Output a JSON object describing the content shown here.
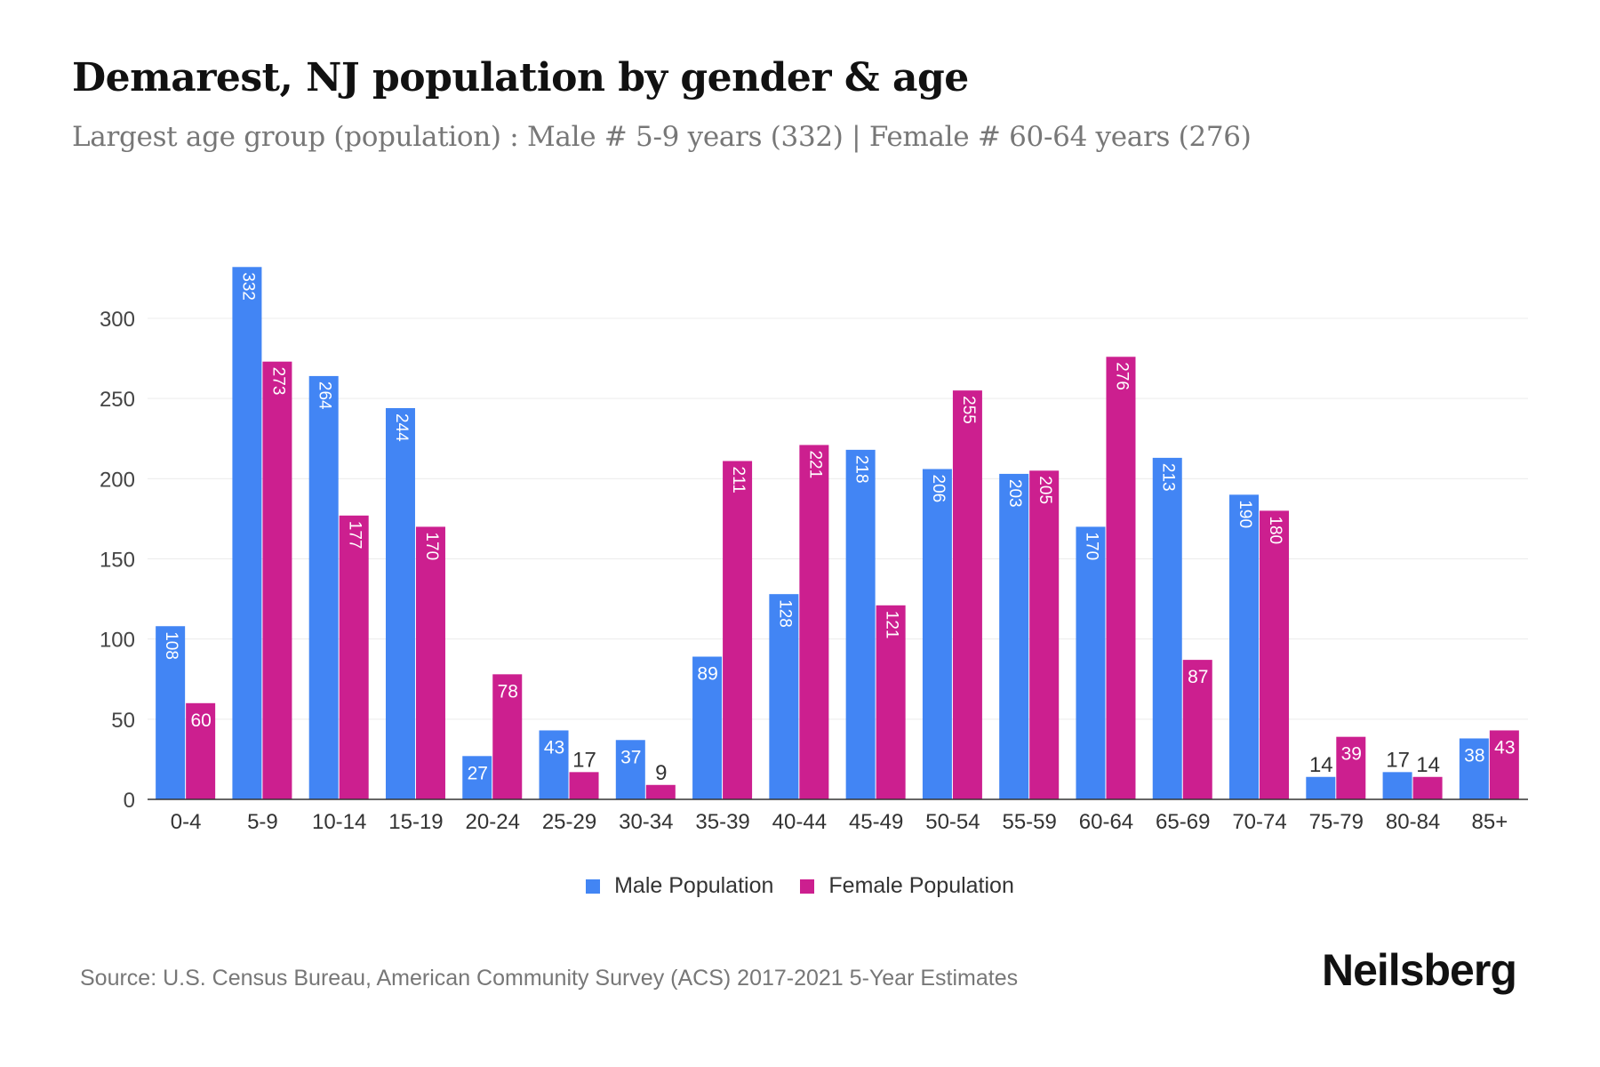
{
  "title": "Demarest, NJ population by gender & age",
  "subtitle": "Largest age group (population) : Male # 5-9 years (332) | Female # 60-64 years (276)",
  "source": "Source: U.S. Census Bureau, American Community Survey (ACS) 2017-2021 5-Year Estimates",
  "logo": "Neilsberg",
  "chart_data": {
    "type": "bar",
    "categories": [
      "0-4",
      "5-9",
      "10-14",
      "15-19",
      "20-24",
      "25-29",
      "30-34",
      "35-39",
      "40-44",
      "45-49",
      "50-54",
      "55-59",
      "60-64",
      "65-69",
      "70-74",
      "75-79",
      "80-84",
      "85+"
    ],
    "series": [
      {
        "name": "Male Population",
        "color": "#4285f4",
        "values": [
          108,
          332,
          264,
          244,
          27,
          43,
          37,
          89,
          128,
          218,
          206,
          203,
          170,
          213,
          190,
          14,
          17,
          38
        ]
      },
      {
        "name": "Female Population",
        "color": "#cc1f8f",
        "values": [
          60,
          273,
          177,
          170,
          78,
          17,
          9,
          211,
          221,
          121,
          255,
          205,
          276,
          87,
          180,
          39,
          14,
          43
        ]
      }
    ],
    "yticks": [
      0,
      50,
      100,
      150,
      200,
      250,
      300
    ],
    "ylim": [
      0,
      332
    ],
    "grid": true,
    "legend": "bottom"
  }
}
